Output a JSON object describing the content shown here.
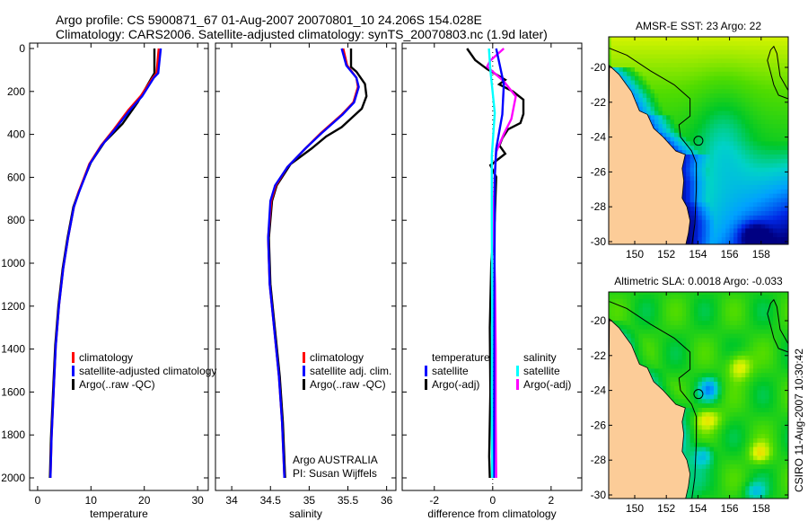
{
  "title": {
    "line1": "Argo profile: CS 5900871_67 01-Aug-2007 20070801_10 24.206S 154.028E",
    "line2": "Climatology: CARS2006. Satellite-adjusted climatology: synTS_20070803.nc (1.9d later)"
  },
  "colors": {
    "climatology": "#ff0000",
    "satellite": "#0000ff",
    "argo": "#000000",
    "sal_satellite": "#00ffff",
    "sal_argo": "#ff00ff"
  },
  "chart_data": [
    {
      "type": "line",
      "name": "temperature-panel",
      "xlabel": "temperature",
      "ylabel": "",
      "xlim": [
        -1.5,
        32
      ],
      "ylim": [
        2060,
        -25
      ],
      "xticks": [
        "0",
        "10",
        "20",
        "30"
      ],
      "xtick_values": [
        0,
        10,
        20,
        30
      ],
      "yticks": [
        "0",
        "200",
        "400",
        "600",
        "800",
        "1000",
        "1200",
        "1400",
        "1600",
        "1800",
        "2000"
      ],
      "ytick_values": [
        0,
        200,
        400,
        600,
        800,
        1000,
        1200,
        1400,
        1600,
        1800,
        2000
      ],
      "legend": [
        "climatology",
        "satellite-adjusted climatology",
        "Argo(..raw -QC)"
      ],
      "series": [
        {
          "name": "climatology",
          "color": "#ff0000",
          "points": [
            [
              22.7,
              0
            ],
            [
              22.3,
              115
            ],
            [
              21.6,
              136
            ],
            [
              19.3,
              222
            ],
            [
              17.0,
              287
            ],
            [
              14.2,
              380
            ],
            [
              11.9,
              452
            ],
            [
              9.7,
              538
            ],
            [
              7.7,
              667
            ],
            [
              6.8,
              738
            ],
            [
              5.7,
              882
            ],
            [
              4.8,
              1025
            ],
            [
              4.0,
              1197
            ],
            [
              3.4,
              1384
            ],
            [
              3.0,
              1599
            ],
            [
              2.6,
              1814
            ],
            [
              2.4,
              2000
            ]
          ]
        },
        {
          "name": "satellite-adjusted climatology",
          "color": "#0000ff",
          "points": [
            [
              23.1,
              0
            ],
            [
              22.6,
              115
            ],
            [
              21.8,
              136
            ],
            [
              19.6,
              222
            ],
            [
              17.3,
              287
            ],
            [
              14.4,
              380
            ],
            [
              12.0,
              452
            ],
            [
              9.8,
              538
            ],
            [
              7.8,
              667
            ],
            [
              6.8,
              738
            ],
            [
              5.7,
              882
            ],
            [
              4.8,
              1025
            ],
            [
              4.0,
              1197
            ],
            [
              3.4,
              1384
            ],
            [
              3.0,
              1599
            ],
            [
              2.6,
              1814
            ],
            [
              2.4,
              2000
            ]
          ]
        },
        {
          "name": "Argo(..raw -QC)",
          "color": "#000000",
          "points": [
            [
              21.9,
              0
            ],
            [
              21.9,
              115
            ],
            [
              21.3,
              140
            ],
            [
              18.75,
              251
            ],
            [
              15.9,
              351
            ],
            [
              12.5,
              437
            ],
            [
              10.0,
              530
            ],
            [
              7.7,
              667
            ],
            [
              6.7,
              738
            ],
            [
              5.6,
              882
            ],
            [
              4.7,
              1025
            ],
            [
              3.9,
              1197
            ],
            [
              3.3,
              1384
            ],
            [
              2.9,
              1599
            ],
            [
              2.5,
              1814
            ],
            [
              2.3,
              2000
            ]
          ]
        }
      ]
    },
    {
      "type": "line",
      "name": "salinity-panel",
      "xlabel": "salinity",
      "xlim": [
        33.79,
        36.12
      ],
      "ylim": [
        2060,
        -25
      ],
      "xticks": [
        "34",
        "34.5",
        "35",
        "35.5",
        "36"
      ],
      "xtick_values": [
        34,
        34.5,
        35,
        35.5,
        36
      ],
      "legend": [
        "climatology",
        "satellite adj. clim.",
        "Argo(..raw -QC)"
      ],
      "annotation": [
        "Argo AUSTRALIA",
        "PI: Susan Wijffels"
      ],
      "series": [
        {
          "name": "climatology",
          "color": "#ff0000",
          "points": [
            [
              35.44,
              0
            ],
            [
              35.49,
              79
            ],
            [
              35.61,
              136
            ],
            [
              35.63,
              179
            ],
            [
              35.57,
              251
            ],
            [
              35.42,
              308
            ],
            [
              35.15,
              394
            ],
            [
              34.95,
              466
            ],
            [
              34.72,
              552
            ],
            [
              34.57,
              638
            ],
            [
              34.51,
              710
            ],
            [
              34.47,
              882
            ],
            [
              34.49,
              1097
            ],
            [
              34.55,
              1312
            ],
            [
              34.61,
              1527
            ],
            [
              34.65,
              1742
            ],
            [
              34.68,
              2000
            ]
          ]
        },
        {
          "name": "satellite adj. clim.",
          "color": "#0000ff",
          "points": [
            [
              35.42,
              0
            ],
            [
              35.48,
              79
            ],
            [
              35.61,
              136
            ],
            [
              35.64,
              179
            ],
            [
              35.58,
              251
            ],
            [
              35.43,
              308
            ],
            [
              35.16,
              394
            ],
            [
              34.95,
              466
            ],
            [
              34.72,
              552
            ],
            [
              34.56,
              638
            ],
            [
              34.5,
              710
            ],
            [
              34.47,
              882
            ],
            [
              34.49,
              1097
            ],
            [
              34.55,
              1312
            ],
            [
              34.61,
              1527
            ],
            [
              34.65,
              1742
            ],
            [
              34.68,
              2000
            ]
          ]
        },
        {
          "name": "Argo(..raw -QC)",
          "color": "#000000",
          "points": [
            [
              35.54,
              0
            ],
            [
              35.54,
              86
            ],
            [
              35.61,
              108
            ],
            [
              35.72,
              165
            ],
            [
              35.74,
              222
            ],
            [
              35.68,
              280
            ],
            [
              35.42,
              366
            ],
            [
              35.22,
              409
            ],
            [
              35.03,
              466
            ],
            [
              34.76,
              538
            ],
            [
              34.58,
              638
            ],
            [
              34.52,
              710
            ],
            [
              34.48,
              882
            ],
            [
              34.5,
              1097
            ],
            [
              34.56,
              1312
            ],
            [
              34.62,
              1527
            ],
            [
              34.66,
              1742
            ],
            [
              34.69,
              2000
            ]
          ]
        }
      ]
    },
    {
      "type": "line",
      "name": "difference-panel",
      "xlabel": "difference from climatology",
      "xlim": [
        -3.1,
        3.05
      ],
      "ylim": [
        2060,
        -25
      ],
      "xticks": [
        "-2",
        "0",
        "2"
      ],
      "xtick_values": [
        -2,
        0,
        2
      ],
      "legend_temperature": {
        "heading": "temperature",
        "items": [
          "satellite",
          "Argo(-adj)"
        ]
      },
      "legend_salinity": {
        "heading": "salinity",
        "items": [
          "satellite",
          "Argo(-adj)"
        ]
      },
      "series": [
        {
          "name": "temperature satellite",
          "color": "#0000ff",
          "points": [
            [
              0.12,
              0
            ],
            [
              0.23,
              70
            ],
            [
              0.38,
              167
            ],
            [
              0.33,
              307
            ],
            [
              0.12,
              467
            ],
            [
              0.07,
              600
            ],
            [
              0.07,
              800
            ],
            [
              0.05,
              1200
            ],
            [
              0.05,
              1600
            ],
            [
              0.04,
              2000
            ]
          ]
        },
        {
          "name": "temperature Argo(-adj)",
          "color": "#000000",
          "points": [
            [
              -0.88,
              0
            ],
            [
              -0.6,
              54
            ],
            [
              -0.19,
              96
            ],
            [
              0.43,
              146
            ],
            [
              0.22,
              167
            ],
            [
              0.69,
              200
            ],
            [
              1.05,
              238
            ],
            [
              1.05,
              305
            ],
            [
              0.95,
              347
            ],
            [
              0.53,
              376
            ],
            [
              0.33,
              418
            ],
            [
              0.23,
              452
            ],
            [
              0.43,
              490
            ],
            [
              -0.08,
              544
            ],
            [
              0.12,
              598
            ],
            [
              0.07,
              795
            ],
            [
              -0.05,
              1000
            ],
            [
              -0.1,
              1300
            ],
            [
              -0.08,
              1600
            ],
            [
              -0.12,
              1900
            ],
            [
              -0.1,
              2000
            ]
          ]
        },
        {
          "name": "salinity satellite",
          "color": "#00ffff",
          "points": [
            [
              -0.13,
              0
            ],
            [
              -0.08,
              100
            ],
            [
              0.07,
              300
            ],
            [
              -0.03,
              500
            ],
            [
              -0.03,
              800
            ],
            [
              -0.02,
              1200
            ],
            [
              -0.03,
              1600
            ],
            [
              -0.02,
              2000
            ]
          ]
        },
        {
          "name": "salinity Argo(-adj)",
          "color": "#ff00ff",
          "points": [
            [
              0.38,
              0
            ],
            [
              -0.08,
              56
            ],
            [
              -0.19,
              84
            ],
            [
              0.38,
              153
            ],
            [
              0.79,
              223
            ],
            [
              0.64,
              328
            ],
            [
              0.38,
              398
            ],
            [
              0.12,
              481
            ],
            [
              0.07,
              579
            ],
            [
              0.02,
              800
            ],
            [
              0.08,
              1100
            ],
            [
              0.1,
              1400
            ],
            [
              0.1,
              1700
            ],
            [
              0.12,
              2000
            ]
          ]
        }
      ]
    }
  ],
  "maps": [
    {
      "title": "AMSR-E SST: 23 Argo: 22",
      "kind": "sst"
    },
    {
      "title": "Altimetric SLA: 0.0018 Argo: -0.033",
      "kind": "sla"
    }
  ],
  "map_axes": {
    "lon_ticks": [
      "150",
      "152",
      "154",
      "156",
      "158"
    ],
    "lon_values": [
      150,
      152,
      154,
      156,
      158
    ],
    "lat_ticks": [
      "-20",
      "-22",
      "-24",
      "-26",
      "-28",
      "-30"
    ],
    "lat_values": [
      -20,
      -22,
      -24,
      -26,
      -28,
      -30
    ]
  },
  "footer_stamp": "CSIRO 11-Aug-2007 10:30:42"
}
